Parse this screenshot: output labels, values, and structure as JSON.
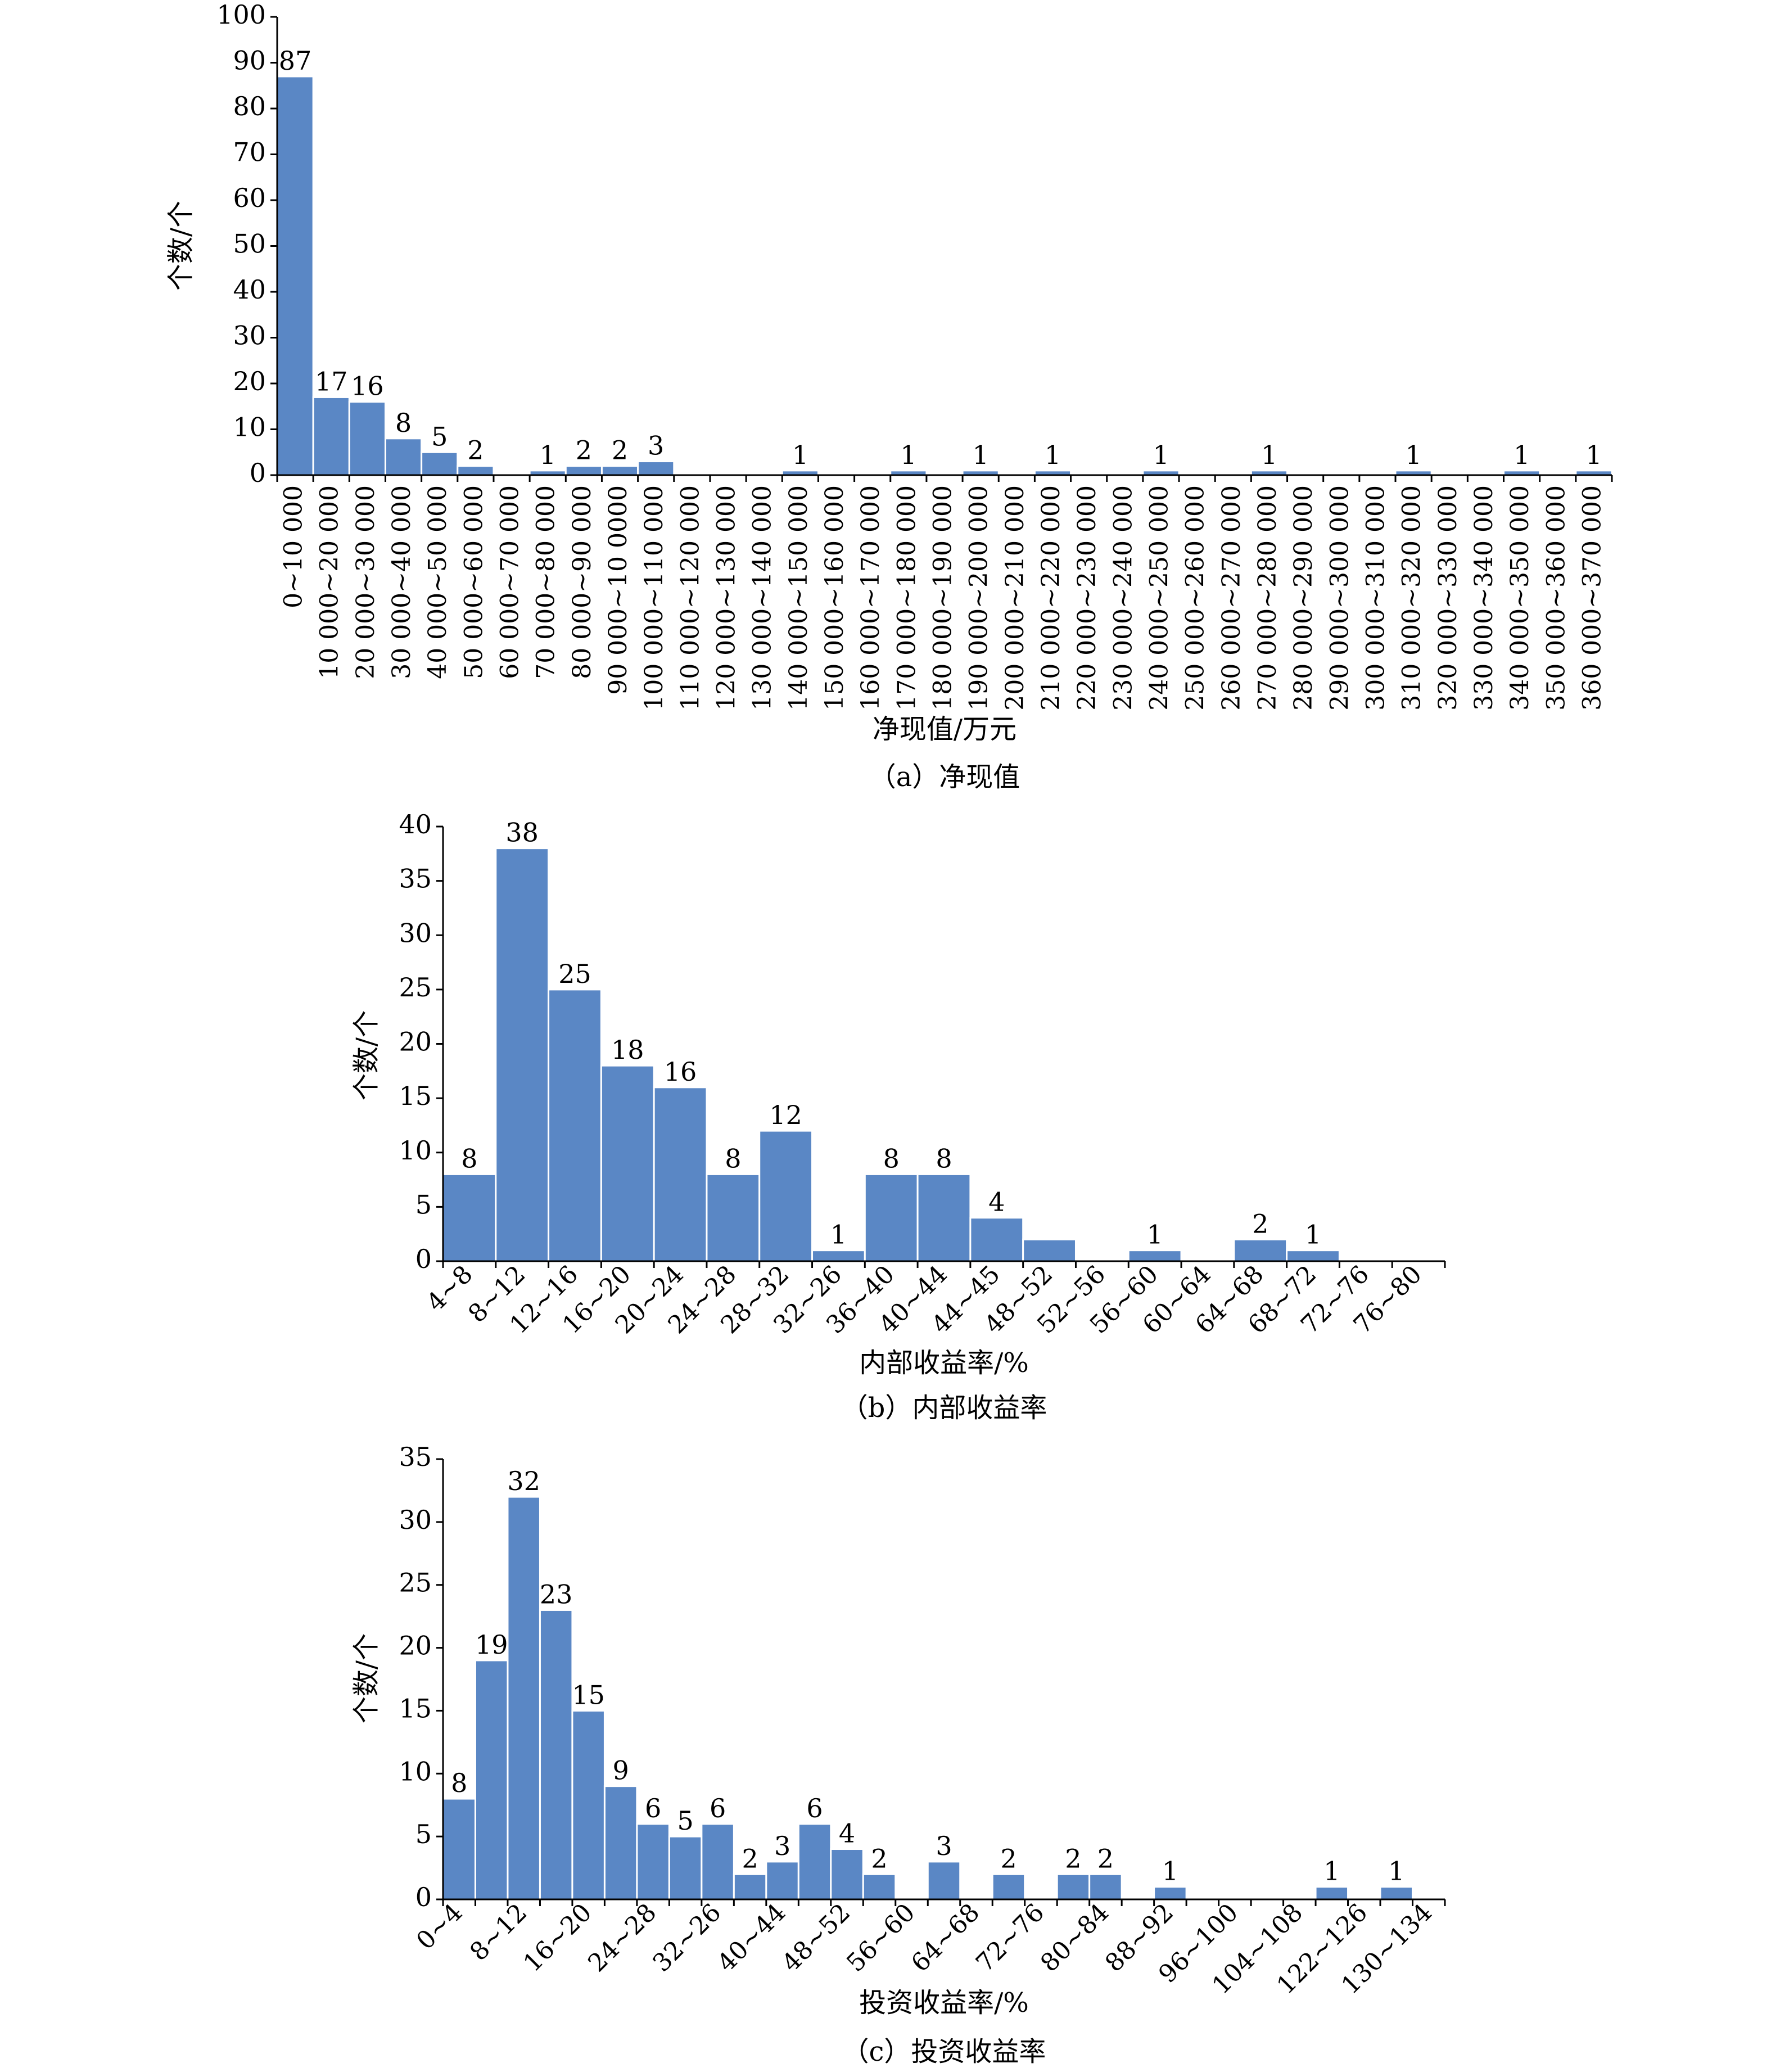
{
  "chart_data": [
    {
      "type": "bar",
      "title": "",
      "caption": "（a）净现值",
      "xlabel": "净现值/万元",
      "ylabel": "个数/个",
      "ylim": [
        0,
        100
      ],
      "yticks": [
        0,
        10,
        20,
        30,
        40,
        50,
        60,
        70,
        80,
        90,
        100
      ],
      "categories": [
        "0~10 000",
        "10 000~20 000",
        "20 000~30 000",
        "30 000~40 000",
        "40 000~50 000",
        "50 000~60 000",
        "60 000~70 000",
        "70 000~80 000",
        "80 000~90 000",
        "90 000~10 0000",
        "100 000~110 000",
        "110 000~120 000",
        "120 000~130 000",
        "130 000~140 000",
        "140 000~150 000",
        "150 000~160 000",
        "160 000~170 000",
        "170 000~180 000",
        "180 000~190 000",
        "190 000~200 000",
        "200 000~210 000",
        "210 000~220 000",
        "220 000~230 000",
        "230 000~240 000",
        "240 000~250 000",
        "250 000~260 000",
        "260 000~270 000",
        "270 000~280 000",
        "280 000~290 000",
        "290 000~300 000",
        "300 000~310 000",
        "310 000~320 000",
        "320 000~330 000",
        "330 000~340 000",
        "340 000~350 000",
        "350 000~360 000",
        "360 000~370 000"
      ],
      "values": [
        87,
        17,
        16,
        8,
        5,
        2,
        0,
        1,
        2,
        2,
        3,
        0,
        0,
        0,
        1,
        0,
        0,
        1,
        0,
        1,
        0,
        1,
        0,
        0,
        1,
        0,
        0,
        1,
        0,
        0,
        0,
        1,
        0,
        0,
        1,
        0,
        1
      ],
      "value_labels": [
        "87",
        "17",
        "16",
        "8",
        "5",
        "2",
        "",
        "1",
        "2",
        "2",
        "3",
        "",
        "",
        "",
        "1",
        "",
        "",
        "1",
        "",
        "1",
        "",
        "1",
        "",
        "",
        "1",
        "",
        "",
        "1",
        "",
        "",
        "",
        "1",
        "",
        "",
        "1",
        "",
        "1"
      ],
      "bar_color": "#5a87c5"
    },
    {
      "type": "bar",
      "title": "",
      "caption": "（b）内部收益率",
      "xlabel": "内部收益率/%",
      "ylabel": "个数/个",
      "ylim": [
        0,
        40
      ],
      "yticks": [
        0,
        5,
        10,
        15,
        20,
        25,
        30,
        35,
        40
      ],
      "categories": [
        "4~8",
        "8~12",
        "12~16",
        "16~20",
        "20~24",
        "24~28",
        "28~32",
        "32~26",
        "36~40",
        "40~44",
        "44~45",
        "48~52",
        "52~56",
        "56~60",
        "60~64",
        "64~68",
        "68~72",
        "72~76",
        "76~80"
      ],
      "values": [
        8,
        38,
        25,
        18,
        16,
        8,
        12,
        1,
        8,
        8,
        4,
        2,
        0,
        1,
        0,
        2,
        1,
        0,
        0
      ],
      "value_labels": [
        "8",
        "38",
        "25",
        "18",
        "16",
        "8",
        "12",
        "1",
        "8",
        "8",
        "4",
        "",
        "",
        "1",
        "",
        "2",
        "1",
        "",
        ""
      ],
      "bar_color": "#5a87c5"
    },
    {
      "type": "bar",
      "title": "",
      "caption": "（c）投资收益率",
      "xlabel": "投资收益率/%",
      "ylabel": "个数/个",
      "ylim": [
        0,
        35
      ],
      "yticks": [
        0,
        5,
        10,
        15,
        20,
        25,
        30,
        35
      ],
      "categories": [
        "0~4",
        "4~8",
        "8~12",
        "12~16",
        "16~20",
        "20~24",
        "24~28",
        "28~32",
        "32~26",
        "36~40",
        "40~44",
        "44~48",
        "48~52",
        "52~56",
        "56~60",
        "60~64",
        "64~68",
        "68~72",
        "72~76",
        "76~80",
        "80~84",
        "84~88",
        "88~92",
        "92~96",
        "96~100",
        "100~104",
        "104~108",
        "108~122",
        "122~126",
        "126~130",
        "130~134"
      ],
      "category_labels_shown": [
        "0~4",
        "",
        "8~12",
        "",
        "16~20",
        "",
        "24~28",
        "",
        "32~26",
        "",
        "40~44",
        "",
        "48~52",
        "",
        "56~60",
        "",
        "64~68",
        "",
        "72~76",
        "",
        "80~84",
        "",
        "88~92",
        "",
        "96~100",
        "",
        "104~108",
        "",
        "122~126",
        "",
        "130~134"
      ],
      "values": [
        8,
        19,
        32,
        23,
        15,
        9,
        6,
        5,
        6,
        2,
        3,
        6,
        4,
        2,
        0,
        3,
        0,
        2,
        0,
        2,
        2,
        0,
        1,
        0,
        0,
        0,
        0,
        1,
        0,
        1,
        0
      ],
      "value_labels": [
        "8",
        "19",
        "32",
        "23",
        "15",
        "9",
        "6",
        "5",
        "6",
        "2",
        "3",
        "6",
        "4",
        "2",
        "",
        "3",
        "",
        "2",
        "",
        "2",
        "2",
        "",
        "1",
        "",
        "",
        "",
        "",
        "1",
        "",
        "1",
        ""
      ],
      "bar_color": "#5a87c5"
    }
  ]
}
